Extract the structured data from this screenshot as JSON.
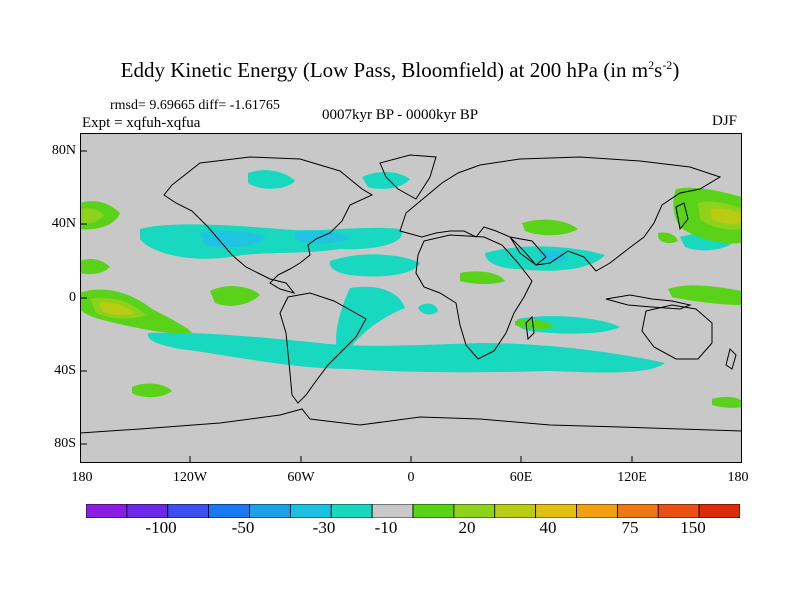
{
  "title": {
    "main": "Eddy Kinetic Energy (Low Pass, Bloomfield) at 200 hPa (in m",
    "sup1": "2",
    "mid": "s",
    "sup2": "-2",
    "end": ")"
  },
  "stats": "rmsd= 9.69665 diff= -1.61765",
  "experiment": "Expt = xqfuh-xqfua",
  "period": "0007kyr BP - 0000kyr BP",
  "season": "DJF",
  "lat_labels": [
    "80N",
    "40N",
    "0",
    "40S",
    "80S"
  ],
  "lon_labels": [
    "180",
    "120W",
    "60W",
    "0",
    "60E",
    "120E",
    "180"
  ],
  "colorbar": {
    "colors": [
      "#8a1ee0",
      "#6a2ae8",
      "#3c50f0",
      "#1a78f0",
      "#1ea0e8",
      "#1cc0e0",
      "#18d8c0",
      "#c8c8c8",
      "#5ad21a",
      "#8fd21a",
      "#b9cc12",
      "#e0c010",
      "#f0a010",
      "#ee7814",
      "#e85014",
      "#dc2a0a"
    ],
    "labels": [
      "-100",
      "-50",
      "-30",
      "-10",
      "20",
      "40",
      "75",
      "150"
    ]
  }
}
